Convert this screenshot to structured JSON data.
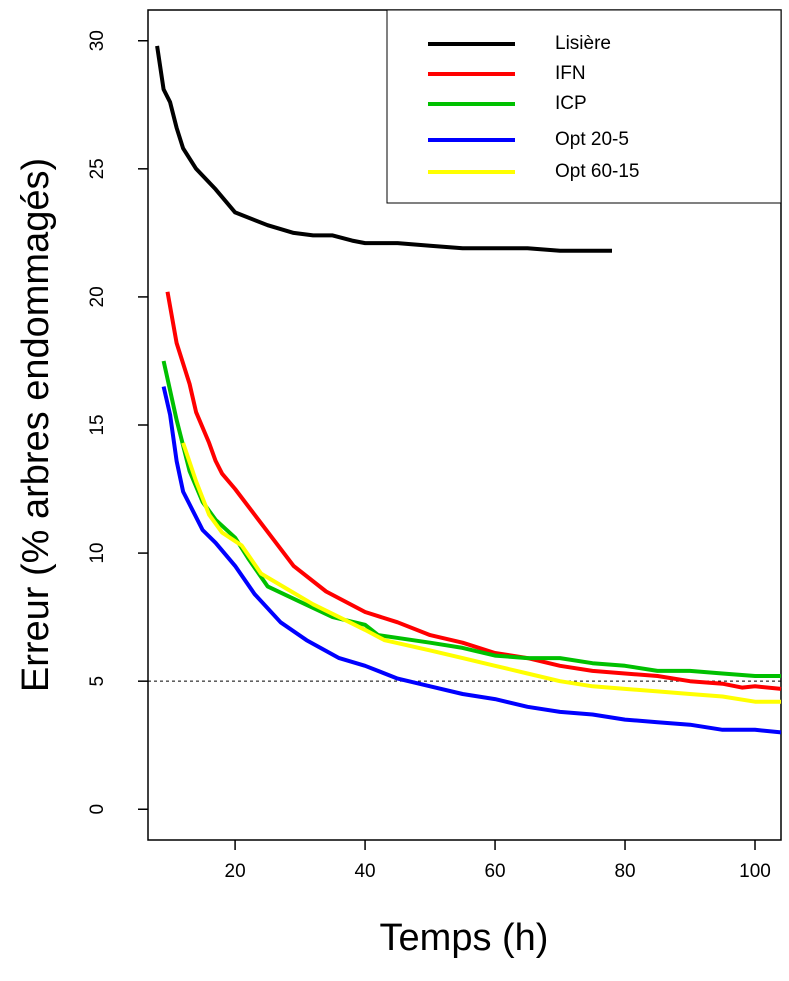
{
  "chart_data": {
    "type": "line",
    "x_label": "Temps (h)",
    "y_label": "Erreur (% arbres endommagés)",
    "xlim": [
      6.6,
      104
    ],
    "ylim": [
      -1.2,
      31.2
    ],
    "xticks": [
      20,
      40,
      60,
      80,
      100
    ],
    "yticks": [
      0,
      5,
      10,
      15,
      20,
      25,
      30
    ],
    "hline": 5,
    "legend": "top-right",
    "series": [
      {
        "name": "Lisière",
        "color": "#000000",
        "x": [
          8,
          9,
          10,
          11,
          12,
          14,
          17,
          20,
          25,
          29,
          32,
          35,
          38,
          40,
          45,
          50,
          55,
          60,
          65,
          70,
          74,
          78
        ],
        "values": [
          29.8,
          28.1,
          27.6,
          26.6,
          25.8,
          25.0,
          24.2,
          23.3,
          22.8,
          22.5,
          22.4,
          22.4,
          22.2,
          22.1,
          22.1,
          22.0,
          21.9,
          21.9,
          21.9,
          21.8,
          21.8,
          21.8
        ]
      },
      {
        "name": "IFN",
        "color": "#ff0000",
        "x": [
          9.6,
          11,
          13,
          14,
          16,
          17,
          18,
          20,
          23,
          26,
          29,
          34,
          40,
          45,
          50,
          55,
          60,
          65,
          70,
          75,
          80,
          85,
          90,
          95,
          98,
          100,
          104
        ],
        "values": [
          20.2,
          18.2,
          16.6,
          15.5,
          14.3,
          13.6,
          13.1,
          12.5,
          11.5,
          10.5,
          9.5,
          8.5,
          7.7,
          7.3,
          6.8,
          6.5,
          6.1,
          5.9,
          5.6,
          5.4,
          5.3,
          5.2,
          5.0,
          4.9,
          4.75,
          4.8,
          4.7
        ]
      },
      {
        "name": "ICP",
        "color": "#00c000",
        "x": [
          9,
          11,
          13,
          15,
          17,
          20,
          22,
          25,
          30,
          35,
          40,
          42,
          50,
          55,
          60,
          65,
          70,
          75,
          80,
          85,
          90,
          95,
          100,
          104
        ],
        "values": [
          17.5,
          15.2,
          13.2,
          12.0,
          11.3,
          10.6,
          9.8,
          8.7,
          8.1,
          7.5,
          7.2,
          6.8,
          6.5,
          6.3,
          6.0,
          5.9,
          5.9,
          5.7,
          5.6,
          5.4,
          5.4,
          5.3,
          5.2,
          5.2
        ]
      },
      {
        "name": "Opt 20-5",
        "color": "#0000ff",
        "x": [
          9,
          10,
          11,
          12,
          13,
          15,
          17,
          20,
          23,
          27,
          31,
          36,
          40,
          45,
          50,
          55,
          60,
          65,
          70,
          75,
          80,
          85,
          90,
          95,
          100,
          104
        ],
        "values": [
          16.5,
          15.4,
          13.6,
          12.4,
          11.9,
          10.9,
          10.4,
          9.5,
          8.4,
          7.3,
          6.6,
          5.9,
          5.6,
          5.1,
          4.8,
          4.5,
          4.3,
          4.0,
          3.8,
          3.7,
          3.5,
          3.4,
          3.3,
          3.1,
          3.1,
          3.0
        ]
      },
      {
        "name": "Opt 60-15",
        "color": "#ffff00",
        "x": [
          12,
          14,
          16,
          18,
          21,
          24,
          28,
          32,
          36,
          40,
          43,
          50,
          55,
          60,
          65,
          70,
          75,
          80,
          85,
          90,
          95,
          100,
          104
        ],
        "values": [
          14.3,
          12.8,
          11.5,
          10.8,
          10.3,
          9.2,
          8.6,
          8.0,
          7.5,
          7.0,
          6.6,
          6.2,
          5.9,
          5.6,
          5.3,
          5.0,
          4.8,
          4.7,
          4.6,
          4.5,
          4.4,
          4.2,
          4.2
        ]
      }
    ]
  }
}
